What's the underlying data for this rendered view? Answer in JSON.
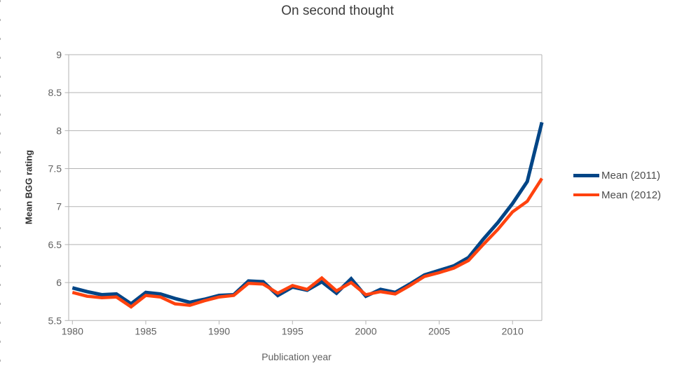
{
  "chart_data": {
    "type": "line",
    "title": "On second thought",
    "xlabel": "Publication year",
    "ylabel": "Mean BGG rating",
    "xlim": [
      1980,
      2012
    ],
    "ylim": [
      5.5,
      9
    ],
    "x_ticks": [
      1980,
      1985,
      1990,
      1995,
      2000,
      2005,
      2010
    ],
    "y_ticks": [
      5.5,
      6,
      6.5,
      7,
      7.5,
      8,
      8.5,
      9
    ],
    "y_tick_labels": [
      "5.5",
      "6",
      "6.5",
      "7",
      "7.5",
      "8",
      "8.5",
      "9"
    ],
    "grid": true,
    "legend_position": "right",
    "x": [
      1980,
      1981,
      1982,
      1983,
      1984,
      1985,
      1986,
      1987,
      1988,
      1989,
      1990,
      1991,
      1992,
      1993,
      1994,
      1995,
      1996,
      1997,
      1998,
      1999,
      2000,
      2001,
      2002,
      2003,
      2004,
      2005,
      2006,
      2007,
      2008,
      2009,
      2010,
      2011,
      2012
    ],
    "series": [
      {
        "name": "Mean (2011)",
        "color": "#004586",
        "line_width": 5,
        "values": [
          5.93,
          5.88,
          5.84,
          5.85,
          5.72,
          5.87,
          5.85,
          5.79,
          5.74,
          5.78,
          5.83,
          5.84,
          6.02,
          6.01,
          5.83,
          5.94,
          5.9,
          6.01,
          5.86,
          6.05,
          5.82,
          5.91,
          5.87,
          5.98,
          6.1,
          6.16,
          6.22,
          6.33,
          6.57,
          6.79,
          7.04,
          7.33,
          8.11
        ]
      },
      {
        "name": "Mean (2012)",
        "color": "#FF420E",
        "line_width": 4.5,
        "values": [
          5.87,
          5.82,
          5.8,
          5.81,
          5.68,
          5.83,
          5.81,
          5.72,
          5.7,
          5.76,
          5.81,
          5.83,
          5.99,
          5.98,
          5.86,
          5.96,
          5.91,
          6.06,
          5.89,
          6.0,
          5.84,
          5.88,
          5.85,
          5.96,
          6.08,
          6.13,
          6.19,
          6.29,
          6.5,
          6.7,
          6.93,
          7.07,
          7.37
        ]
      }
    ],
    "colors": {
      "grid": "#b3b3b3",
      "axis": "#b3b3b3",
      "tick_text": "#606060",
      "title_text": "#3c3c3c",
      "legend_text": "#4d4d4d"
    }
  }
}
